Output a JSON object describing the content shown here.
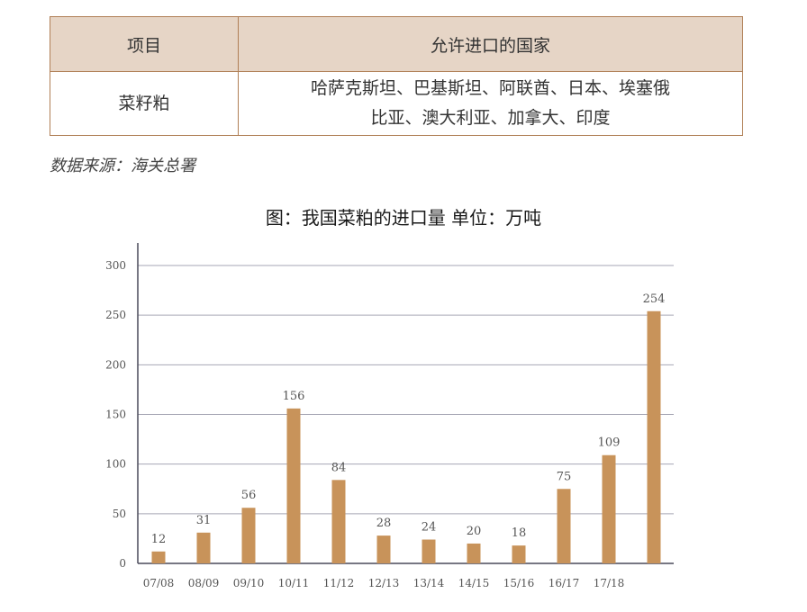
{
  "table": {
    "headers": [
      "项目",
      "允许进口的国家"
    ],
    "row": {
      "item": "菜籽粕",
      "countries_line1": "哈萨克斯坦、巴基斯坦、阿联酋、日本、埃塞俄",
      "countries_line2": "比亚、澳大利亚、加拿大、印度"
    }
  },
  "source": "数据来源：海关总署",
  "chart_data": {
    "type": "bar",
    "title": "图：我国菜粕的进口量 单位：万吨",
    "categories": [
      "07/08",
      "08/09",
      "09/10",
      "10/11",
      "11/12",
      "12/13",
      "13/14",
      "14/15",
      "15/16",
      "16/17",
      "17/18",
      ""
    ],
    "values": [
      12,
      31,
      56,
      156,
      84,
      28,
      24,
      20,
      18,
      75,
      109,
      254
    ],
    "ylim": [
      0,
      300
    ],
    "yticks": [
      0,
      50,
      100,
      150,
      200,
      250,
      300
    ],
    "grid": true,
    "bar_color": "#c8935a",
    "grid_color": "#a6a6b4",
    "axis_color": "#4a4a5a",
    "xlabel": "",
    "ylabel": ""
  }
}
